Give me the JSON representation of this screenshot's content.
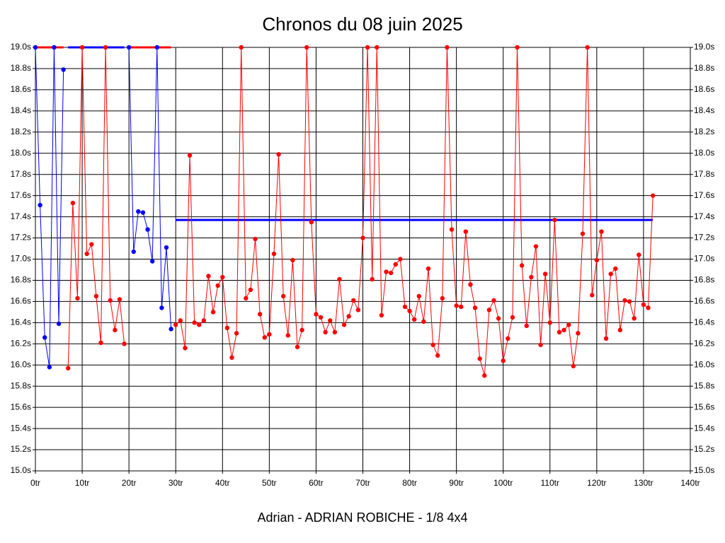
{
  "chart_data": {
    "type": "line",
    "title": "Chronos du 08 juin 2025",
    "xlabel": "Adrian - ADRIAN ROBICHE - 1/8 4x4",
    "x": [
      0,
      1,
      2,
      3,
      4,
      5,
      6,
      7,
      8,
      9,
      10,
      11,
      12,
      13,
      14,
      15,
      16,
      17,
      18,
      19,
      20,
      21,
      22,
      23,
      24,
      25,
      26,
      27,
      28,
      29,
      30,
      31,
      32,
      33,
      34,
      35,
      36,
      37,
      38,
      39,
      40,
      41,
      42,
      43,
      44,
      45,
      46,
      47,
      48,
      49,
      50,
      51,
      52,
      53,
      54,
      55,
      56,
      57,
      58,
      59,
      60,
      61,
      62,
      63,
      64,
      65,
      66,
      67,
      68,
      69,
      70,
      71,
      72,
      73,
      74,
      75,
      76,
      77,
      78,
      79,
      80,
      81,
      82,
      83,
      84,
      85,
      86,
      87,
      88,
      89,
      90,
      91,
      92,
      93,
      94,
      95,
      96,
      97,
      98,
      99,
      100,
      101,
      102,
      103,
      104,
      105,
      106,
      107,
      108,
      109,
      110,
      111,
      112,
      113,
      114,
      115,
      116,
      117,
      118,
      119,
      120,
      121,
      122,
      123,
      124,
      125,
      126,
      127,
      128,
      129,
      130,
      131,
      132
    ],
    "series": [
      {
        "color": "#0000ff",
        "values": [
          19.0,
          17.51,
          16.26,
          15.98,
          19.0,
          16.39,
          18.79,
          null,
          null,
          null,
          null,
          null,
          null,
          null,
          null,
          null,
          null,
          null,
          null,
          null,
          19.0,
          17.07,
          17.45,
          17.44,
          17.28,
          16.98,
          19.0,
          16.54,
          17.11,
          16.34,
          null,
          null,
          null,
          null,
          null,
          null,
          null,
          null,
          null,
          null,
          null,
          null,
          null,
          null,
          null,
          null,
          null,
          null,
          null,
          null,
          null,
          null,
          null,
          null,
          null,
          null,
          null,
          null,
          null,
          null,
          null,
          null,
          null,
          null,
          null,
          null,
          null,
          null,
          null,
          null,
          null,
          null,
          null,
          null,
          null,
          null,
          null,
          null,
          null,
          null,
          null,
          null,
          null,
          null,
          null,
          null,
          null,
          null,
          null,
          null,
          null,
          null,
          null,
          null,
          null,
          null,
          null,
          null,
          null,
          null,
          null,
          null,
          null,
          null,
          null,
          null,
          null,
          null,
          null,
          null,
          null,
          null,
          null,
          null,
          null,
          null,
          null,
          null,
          null,
          null,
          null,
          null,
          null,
          null,
          null,
          null,
          null,
          null,
          null,
          null,
          null,
          null,
          null
        ]
      },
      {
        "color": "#ff0000",
        "values": [
          null,
          null,
          null,
          null,
          null,
          null,
          null,
          15.97,
          17.53,
          16.63,
          19.0,
          17.05,
          17.14,
          16.65,
          16.21,
          19.0,
          16.61,
          16.33,
          16.62,
          16.2,
          null,
          null,
          null,
          null,
          null,
          null,
          null,
          null,
          null,
          null,
          16.38,
          16.42,
          16.16,
          17.98,
          16.4,
          16.38,
          16.42,
          16.84,
          16.5,
          16.75,
          16.83,
          16.35,
          16.07,
          16.3,
          19.0,
          16.63,
          16.71,
          17.19,
          16.48,
          16.26,
          16.29,
          17.05,
          17.99,
          16.65,
          16.28,
          16.99,
          16.17,
          16.33,
          19.0,
          17.35,
          16.48,
          16.45,
          16.31,
          16.42,
          16.31,
          16.81,
          16.38,
          16.46,
          16.61,
          16.52,
          17.2,
          19.0,
          16.81,
          19.0,
          16.47,
          16.88,
          16.87,
          16.95,
          17.0,
          16.55,
          16.51,
          16.43,
          16.65,
          16.41,
          16.91,
          16.19,
          16.09,
          16.63,
          19.0,
          17.28,
          16.56,
          16.55,
          17.26,
          16.76,
          16.54,
          16.06,
          15.9,
          16.52,
          16.61,
          16.44,
          16.04,
          16.25,
          16.45,
          19.0,
          16.94,
          16.37,
          16.83,
          17.12,
          16.19,
          16.86,
          16.4,
          17.37,
          16.31,
          16.33,
          16.38,
          15.99,
          16.3,
          17.24,
          19.0,
          16.66,
          16.99,
          17.26,
          16.25,
          16.86,
          16.91,
          16.33,
          16.61,
          16.6,
          16.44,
          17.04,
          16.57,
          16.54,
          17.6
        ]
      }
    ],
    "average": {
      "value": 17.37,
      "from": 30,
      "to": 132,
      "color": "#0000ff"
    },
    "bands": [
      {
        "from": 0,
        "to": 6,
        "color": "#ff0000"
      },
      {
        "from": 7,
        "to": 19,
        "color": "#0000ff"
      },
      {
        "from": 20,
        "to": 29,
        "color": "#ff0000"
      }
    ],
    "xlim": [
      0,
      140
    ],
    "xticks": [
      {
        "value": 0,
        "label": "0tr"
      },
      {
        "value": 10,
        "label": "10tr"
      },
      {
        "value": 20,
        "label": "20tr"
      },
      {
        "value": 30,
        "label": "30tr"
      },
      {
        "value": 40,
        "label": "40tr"
      },
      {
        "value": 50,
        "label": "50tr"
      },
      {
        "value": 60,
        "label": "60tr"
      },
      {
        "value": 70,
        "label": "70tr"
      },
      {
        "value": 80,
        "label": "80tr"
      },
      {
        "value": 90,
        "label": "90tr"
      },
      {
        "value": 100,
        "label": "100tr"
      },
      {
        "value": 110,
        "label": "110tr"
      },
      {
        "value": 120,
        "label": "120tr"
      },
      {
        "value": 130,
        "label": "130tr"
      },
      {
        "value": 140,
        "label": "140tr"
      }
    ],
    "ylim": [
      15.0,
      19.0
    ],
    "yticks": [
      {
        "value": 15.0,
        "label": "15.0s"
      },
      {
        "value": 15.2,
        "label": "15.2s"
      },
      {
        "value": 15.4,
        "label": "15.4s"
      },
      {
        "value": 15.6,
        "label": "15.6s"
      },
      {
        "value": 15.8,
        "label": "15.8s"
      },
      {
        "value": 16.0,
        "label": "16.0s"
      },
      {
        "value": 16.2,
        "label": "16.2s"
      },
      {
        "value": 16.4,
        "label": "16.4s"
      },
      {
        "value": 16.6,
        "label": "16.6s"
      },
      {
        "value": 16.8,
        "label": "16.8s"
      },
      {
        "value": 17.0,
        "label": "17.0s"
      },
      {
        "value": 17.2,
        "label": "17.2s"
      },
      {
        "value": 17.4,
        "label": "17.4s"
      },
      {
        "value": 17.6,
        "label": "17.6s"
      },
      {
        "value": 17.8,
        "label": "17.8s"
      },
      {
        "value": 18.0,
        "label": "18.0s"
      },
      {
        "value": 18.2,
        "label": "18.2s"
      },
      {
        "value": 18.4,
        "label": "18.4s"
      },
      {
        "value": 18.6,
        "label": "18.6s"
      },
      {
        "value": 18.8,
        "label": "18.8s"
      },
      {
        "value": 19.0,
        "label": "19.0s"
      }
    ],
    "grid": true
  }
}
